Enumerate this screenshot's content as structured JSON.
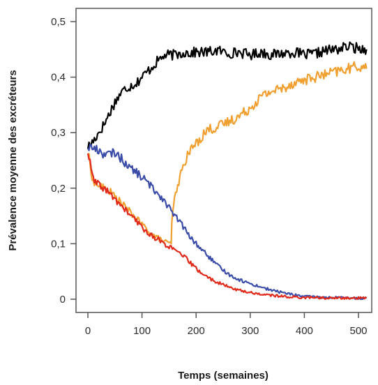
{
  "chart_data": {
    "type": "line",
    "title": "",
    "xlabel": "Temps (semaines)",
    "ylabel": "Prévalence moyenne des excréteurs",
    "xlim": [
      0,
      520
    ],
    "ylim": [
      0,
      0.5
    ],
    "x_ticks": [
      0,
      100,
      200,
      300,
      400,
      500
    ],
    "x_tick_labels": [
      "0",
      "100",
      "200",
      "300",
      "400",
      "500"
    ],
    "y_ticks": [
      0,
      0.1,
      0.2,
      0.3,
      0.4,
      0.5
    ],
    "y_tick_labels": [
      "0",
      "0,1",
      "0,2",
      "0,3",
      "0,4",
      "0,5"
    ],
    "grid": false,
    "legend": "none",
    "series": [
      {
        "color": "#000000",
        "x": [
          0,
          10,
          20,
          30,
          40,
          50,
          60,
          70,
          80,
          90,
          100,
          110,
          120,
          130,
          140,
          150,
          160,
          170,
          180,
          190,
          200,
          220,
          240,
          260,
          280,
          300,
          320,
          340,
          360,
          380,
          400,
          420,
          440,
          460,
          480,
          500,
          515
        ],
        "y": [
          0.275,
          0.285,
          0.3,
          0.315,
          0.335,
          0.355,
          0.37,
          0.38,
          0.385,
          0.39,
          0.4,
          0.41,
          0.42,
          0.43,
          0.438,
          0.44,
          0.44,
          0.442,
          0.445,
          0.443,
          0.445,
          0.445,
          0.448,
          0.443,
          0.445,
          0.44,
          0.445,
          0.44,
          0.443,
          0.445,
          0.44,
          0.442,
          0.448,
          0.45,
          0.455,
          0.452,
          0.45
        ]
      },
      {
        "color": "#f0a030",
        "x": [
          0,
          10,
          20,
          30,
          40,
          50,
          60,
          70,
          80,
          90,
          100,
          110,
          120,
          130,
          140,
          150,
          154,
          155,
          160,
          170,
          180,
          190,
          200,
          220,
          240,
          260,
          280,
          300,
          320,
          340,
          360,
          380,
          400,
          420,
          440,
          460,
          480,
          500,
          515
        ],
        "y": [
          0.265,
          0.21,
          0.205,
          0.2,
          0.195,
          0.185,
          0.175,
          0.165,
          0.155,
          0.145,
          0.135,
          0.125,
          0.115,
          0.11,
          0.105,
          0.1,
          0.1,
          0.14,
          0.18,
          0.22,
          0.25,
          0.27,
          0.28,
          0.305,
          0.31,
          0.32,
          0.33,
          0.345,
          0.365,
          0.375,
          0.38,
          0.39,
          0.395,
          0.4,
          0.405,
          0.41,
          0.415,
          0.42,
          0.415
        ]
      },
      {
        "color": "#3a4ca8",
        "x": [
          0,
          10,
          20,
          30,
          40,
          50,
          60,
          70,
          80,
          90,
          100,
          110,
          120,
          130,
          140,
          150,
          160,
          170,
          180,
          190,
          200,
          220,
          240,
          260,
          280,
          300,
          320,
          340,
          360,
          380,
          400,
          420,
          440,
          460,
          480,
          500,
          515
        ],
        "y": [
          0.275,
          0.272,
          0.268,
          0.262,
          0.26,
          0.265,
          0.255,
          0.245,
          0.235,
          0.228,
          0.22,
          0.21,
          0.2,
          0.19,
          0.18,
          0.165,
          0.15,
          0.14,
          0.125,
          0.11,
          0.1,
          0.08,
          0.06,
          0.045,
          0.035,
          0.028,
          0.022,
          0.016,
          0.012,
          0.008,
          0.005,
          0.004,
          0.003,
          0.003,
          0.002,
          0.002,
          0.002
        ]
      },
      {
        "color": "#e02a1c",
        "x": [
          0,
          10,
          20,
          30,
          40,
          50,
          60,
          70,
          80,
          90,
          100,
          110,
          120,
          130,
          140,
          150,
          160,
          170,
          180,
          190,
          200,
          220,
          240,
          260,
          280,
          300,
          320,
          340,
          360,
          380,
          400,
          420,
          440,
          460,
          480,
          500,
          515
        ],
        "y": [
          0.265,
          0.215,
          0.205,
          0.2,
          0.19,
          0.18,
          0.17,
          0.16,
          0.15,
          0.14,
          0.13,
          0.12,
          0.113,
          0.108,
          0.1,
          0.095,
          0.088,
          0.082,
          0.075,
          0.065,
          0.055,
          0.04,
          0.03,
          0.022,
          0.016,
          0.012,
          0.009,
          0.007,
          0.005,
          0.004,
          0.003,
          0.003,
          0.002,
          0.002,
          0.002,
          0.002,
          0.002
        ]
      }
    ]
  }
}
